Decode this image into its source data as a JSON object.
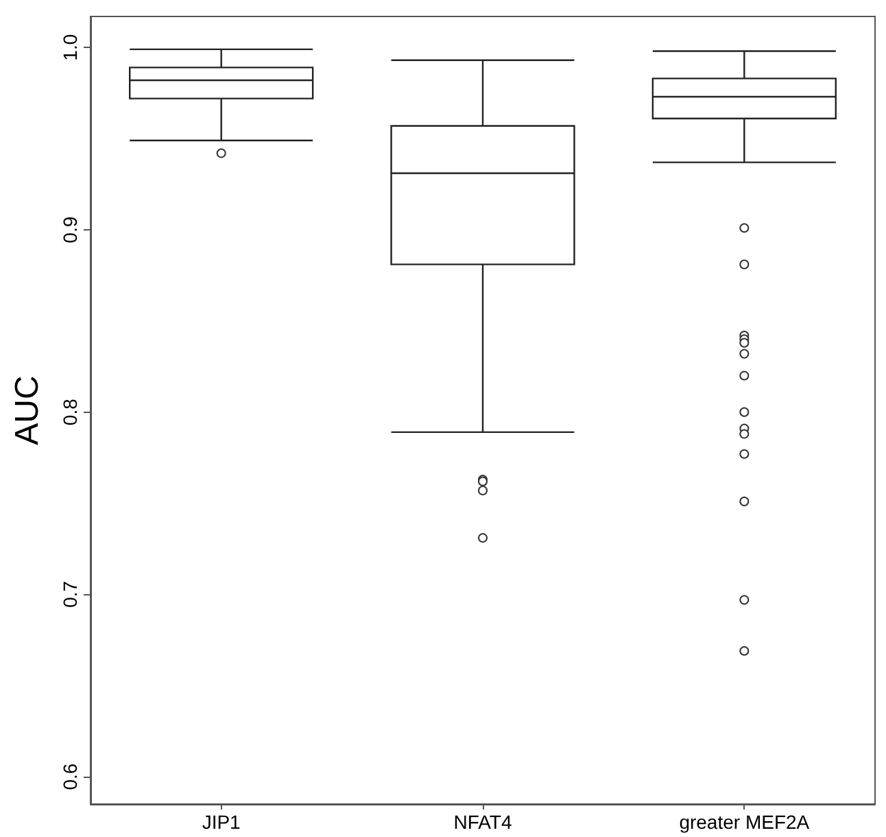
{
  "chart_data": {
    "type": "box",
    "ylabel": "AUC",
    "categories": [
      "JIP1",
      "NFAT4",
      "greater MEF2A"
    ],
    "boxes": [
      {
        "low": 0.949,
        "q1": 0.972,
        "median": 0.982,
        "q3": 0.989,
        "high": 0.999,
        "outliers": [
          0.942
        ]
      },
      {
        "low": 0.789,
        "q1": 0.881,
        "median": 0.931,
        "q3": 0.957,
        "high": 0.993,
        "outliers": [
          0.763,
          0.762,
          0.757,
          0.731
        ]
      },
      {
        "low": 0.937,
        "q1": 0.961,
        "median": 0.973,
        "q3": 0.983,
        "high": 0.998,
        "outliers": [
          0.901,
          0.881,
          0.842,
          0.84,
          0.838,
          0.832,
          0.82,
          0.8,
          0.791,
          0.788,
          0.777,
          0.751,
          0.697,
          0.669
        ]
      }
    ],
    "ylim": [
      0.585,
      1.017
    ],
    "yticks": [
      0.6,
      0.7,
      0.8,
      0.9,
      {
        "value": 1,
        "label": "1.0"
      }
    ],
    "grid": false
  }
}
